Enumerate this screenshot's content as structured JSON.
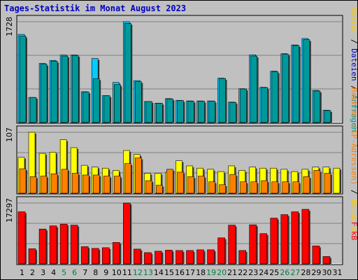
{
  "title": "Tages-Statistik im Monat August 2023",
  "days": [
    "1",
    "2",
    "3",
    "4",
    "5",
    "6",
    "7",
    "8",
    "9",
    "10",
    "11",
    "12",
    "13",
    "14",
    "15",
    "16",
    "17",
    "18",
    "19",
    "20",
    "21",
    "22",
    "23",
    "24",
    "25",
    "26",
    "27",
    "28",
    "29",
    "30",
    "31"
  ],
  "weekend_days": [
    "5",
    "6",
    "12",
    "13",
    "19",
    "20",
    "26",
    "27"
  ],
  "colors": {
    "background": "#c0c0c0",
    "panel": "#c0c0c0",
    "title": "#0000c0",
    "hits": "#00ccff",
    "files": "#009999",
    "hosts": "#ff8000",
    "visits": "#ffff00",
    "kbytes": "#ff0000",
    "weekend_label": "#008040",
    "weekday_label": "#000000"
  },
  "chart_data": {
    "type": "bar",
    "title": "Tages-Statistik im Monat August 2023",
    "categories": [
      "1",
      "2",
      "3",
      "4",
      "5",
      "6",
      "7",
      "8",
      "9",
      "10",
      "11",
      "12",
      "13",
      "14",
      "15",
      "16",
      "17",
      "18",
      "19",
      "20",
      "21",
      "22",
      "23",
      "24",
      "25",
      "26",
      "27",
      "28",
      "29",
      "30",
      "31"
    ],
    "panels": [
      {
        "id": "requests",
        "ymax_label": "1728",
        "ylim": [
          0,
          1728
        ],
        "side_label": [
          "Anfragen",
          " / ",
          "Dateien",
          " / ",
          "Seiten"
        ],
        "series": [
          {
            "name": "Anfragen",
            "color": "#00ccff",
            "values": [
              1511,
              430,
              1013,
              1065,
              1158,
              1158,
              528,
              1097,
              461,
              687,
              1728,
              719,
              360,
              331,
              410,
              379,
              370,
              370,
              370,
              760,
              350,
              580,
              1160,
              604,
              880,
              1180,
              1330,
              1440,
              551,
              211,
              0
            ]
          },
          {
            "name": "Dateien",
            "color": "#009999",
            "values": [
              1480,
              430,
              1000,
              1050,
              1140,
              1150,
              523,
              750,
              459,
              650,
              1700,
              700,
              360,
              330,
              405,
              376,
              365,
              366,
              367,
              755,
              345,
              575,
              1140,
              600,
              870,
              1170,
              1320,
              1420,
              540,
              205,
              0
            ]
          }
        ]
      },
      {
        "id": "hosts",
        "ymax_label": "107",
        "ylim": [
          0,
          107
        ],
        "side_label": [
          "Besuche",
          " / ",
          "Rechner (IP-Adressen)"
        ],
        "series": [
          {
            "name": "Besuche",
            "color": "#ffff00",
            "values": [
              63,
              107,
              70,
              72,
              94,
              80,
              49,
              46,
              44,
              40,
              75,
              68,
              35,
              35,
              37,
              57,
              48,
              44,
              42,
              38,
              48,
              40,
              46,
              44,
              44,
              42,
              38,
              42,
              46,
              46,
              44
            ]
          },
          {
            "name": "Rechner (IP-Adressen)",
            "color": "#ff8000",
            "values": [
              43,
              29,
              30,
              34,
              42,
              35,
              32,
              32,
              30,
              30,
              52,
              62,
              22,
              14,
              42,
              37,
              29,
              30,
              20,
              15,
              33,
              20,
              20,
              22,
              20,
              20,
              20,
              29,
              40,
              35,
              0
            ]
          }
        ]
      },
      {
        "id": "kbytes",
        "ymax_label": "17297",
        "ylim": [
          0,
          17297
        ],
        "side_label": [
          "kB",
          " ",
          "F"
        ],
        "series": [
          {
            "name": "kB F",
            "color": "#ff0000",
            "values": [
              14800,
              4300,
              9900,
              10800,
              11300,
              11000,
              4900,
              4400,
              4600,
              6100,
              17297,
              4200,
              3200,
              3600,
              3900,
              3800,
              3800,
              4000,
              4000,
              7400,
              11000,
              3800,
              11100,
              8600,
              13000,
              14000,
              14800,
              15500,
              5100,
              2100,
              0
            ]
          }
        ]
      }
    ]
  }
}
